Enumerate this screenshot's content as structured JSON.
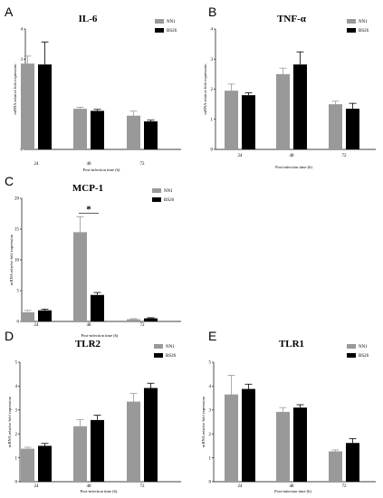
{
  "chart_data": [
    {
      "type": "bar",
      "panel_label": "A",
      "title": "IL-6",
      "categories": [
        "24",
        "48",
        "72"
      ],
      "xlabel": "Post-infection time (h)",
      "ylabel": "mRNA relative fold expression",
      "ylim": [
        0,
        4
      ],
      "yticks": [
        "0",
        "1",
        "2",
        "3",
        "4"
      ],
      "series": [
        {
          "name": "NN1",
          "values": [
            2.85,
            1.35,
            1.12
          ],
          "errors": [
            0.25,
            0.05,
            0.15
          ],
          "color": "#999999"
        },
        {
          "name": "BS26",
          "values": [
            2.82,
            1.28,
            0.93
          ],
          "errors": [
            0.75,
            0.05,
            0.04
          ],
          "color": "#000000"
        }
      ],
      "annotations": []
    },
    {
      "type": "bar",
      "panel_label": "B",
      "title": "TNF-α",
      "categories": [
        "24",
        "48",
        "72"
      ],
      "xlabel": "Post-infection time (h)",
      "ylabel": "mRNA relative fold expression",
      "ylim": [
        0,
        4
      ],
      "yticks": [
        "0",
        "1",
        "2",
        "3",
        "4"
      ],
      "series": [
        {
          "name": "NN1",
          "values": [
            1.95,
            2.5,
            1.5
          ],
          "errors": [
            0.22,
            0.2,
            0.1
          ],
          "color": "#999999"
        },
        {
          "name": "BS26",
          "values": [
            1.8,
            2.82,
            1.35
          ],
          "errors": [
            0.08,
            0.42,
            0.18
          ],
          "color": "#000000"
        }
      ],
      "annotations": []
    },
    {
      "type": "bar",
      "panel_label": "C",
      "title": "MCP-1",
      "categories": [
        "24",
        "48",
        "72"
      ],
      "xlabel": "Post-infection time (h)",
      "ylabel": "mRNA relative fold expression",
      "ylim": [
        0,
        20
      ],
      "yticks": [
        "0",
        "5",
        "10",
        "15",
        "20"
      ],
      "series": [
        {
          "name": "NN1",
          "values": [
            1.5,
            14.5,
            0.35
          ],
          "errors": [
            0.3,
            2.5,
            0.1
          ],
          "color": "#999999"
        },
        {
          "name": "BS26",
          "values": [
            1.8,
            4.3,
            0.5
          ],
          "errors": [
            0.2,
            0.4,
            0.1
          ],
          "color": "#000000"
        }
      ],
      "annotations": [
        {
          "text": "*",
          "category": "48"
        }
      ]
    },
    {
      "type": "bar",
      "panel_label": "D",
      "title": "TLR2",
      "categories": [
        "24",
        "48",
        "72"
      ],
      "xlabel": "Post-infection time (h)",
      "ylabel": "mRNA relative fold expression",
      "ylim": [
        0,
        5
      ],
      "yticks": [
        "0",
        "1",
        "2",
        "3",
        "4",
        "5"
      ],
      "series": [
        {
          "name": "NN1",
          "values": [
            1.38,
            2.32,
            3.35
          ],
          "errors": [
            0.06,
            0.28,
            0.35
          ],
          "color": "#999999"
        },
        {
          "name": "BS26",
          "values": [
            1.5,
            2.58,
            3.92
          ],
          "errors": [
            0.1,
            0.2,
            0.2
          ],
          "color": "#000000"
        }
      ],
      "annotations": []
    },
    {
      "type": "bar",
      "panel_label": "E",
      "title": "TLR1",
      "categories": [
        "24",
        "48",
        "72"
      ],
      "xlabel": "Post-infection time (h)",
      "ylabel": "mRNA relative fold expression",
      "ylim": [
        0,
        5
      ],
      "yticks": [
        "0",
        "1",
        "2",
        "3",
        "4",
        "5"
      ],
      "series": [
        {
          "name": "NN1",
          "values": [
            3.65,
            2.92,
            1.27
          ],
          "errors": [
            0.8,
            0.18,
            0.06
          ],
          "color": "#999999"
        },
        {
          "name": "BS26",
          "values": [
            3.88,
            3.1,
            1.62
          ],
          "errors": [
            0.2,
            0.12,
            0.18
          ],
          "color": "#000000"
        }
      ],
      "annotations": []
    }
  ]
}
